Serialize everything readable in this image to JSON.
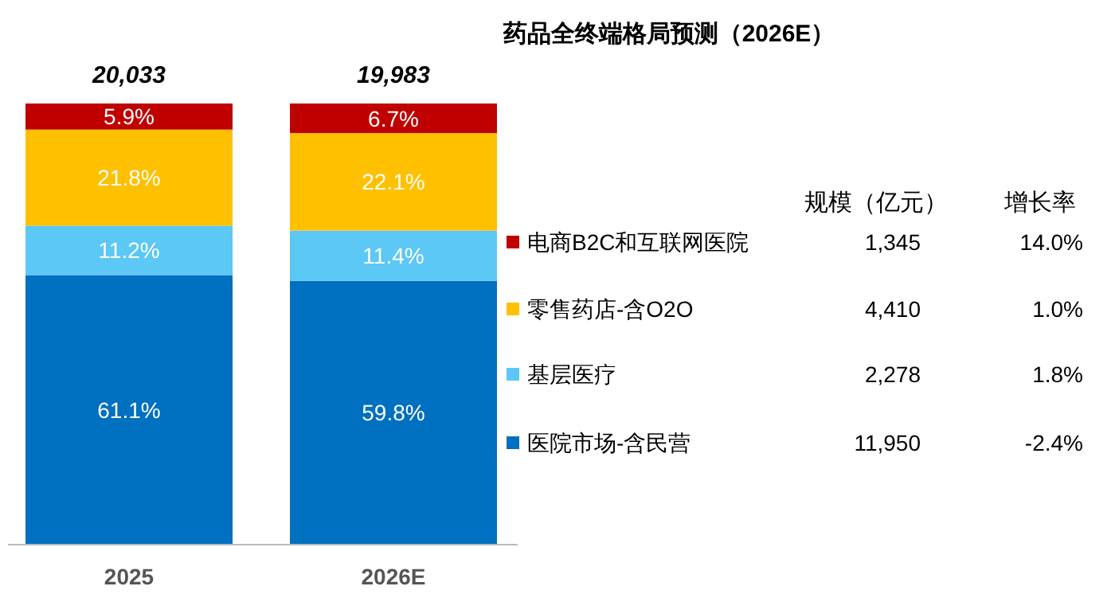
{
  "chart_data": {
    "type": "bar",
    "title": "药品全终端格局预测（2026E）",
    "categories": [
      "2025",
      "2026E"
    ],
    "stacked": true,
    "legend": "right",
    "series": [
      {
        "name": "医院市场-含民营",
        "color": "#0070c0",
        "values": [
          61.1,
          59.8
        ],
        "value_labels": [
          "61.1%",
          "59.8%"
        ]
      },
      {
        "name": "基层医疗",
        "color": "#5bc8f5",
        "values": [
          11.2,
          11.4
        ],
        "value_labels": [
          "11.2%",
          "11.4%"
        ]
      },
      {
        "name": "零售药店-含O2O",
        "color": "#ffc000",
        "values": [
          21.8,
          22.1
        ],
        "value_labels": [
          "21.8%",
          "22.1%"
        ]
      },
      {
        "name": "电商B2C和互联网医院",
        "color": "#c00000",
        "values": [
          5.9,
          6.7
        ],
        "value_labels": [
          "5.9%",
          "6.7%"
        ]
      }
    ],
    "annotations": [
      {
        "text": "20,033",
        "x": "2025",
        "y": 100
      },
      {
        "text": "19,983",
        "x": "2026E",
        "y": 100
      },
      "规模（亿元）",
      "增长率",
      "1,345",
      "14.0%",
      "4,410",
      "1.0%",
      "2,278",
      "1.8%",
      "11,950",
      "-2.4%"
    ]
  }
}
